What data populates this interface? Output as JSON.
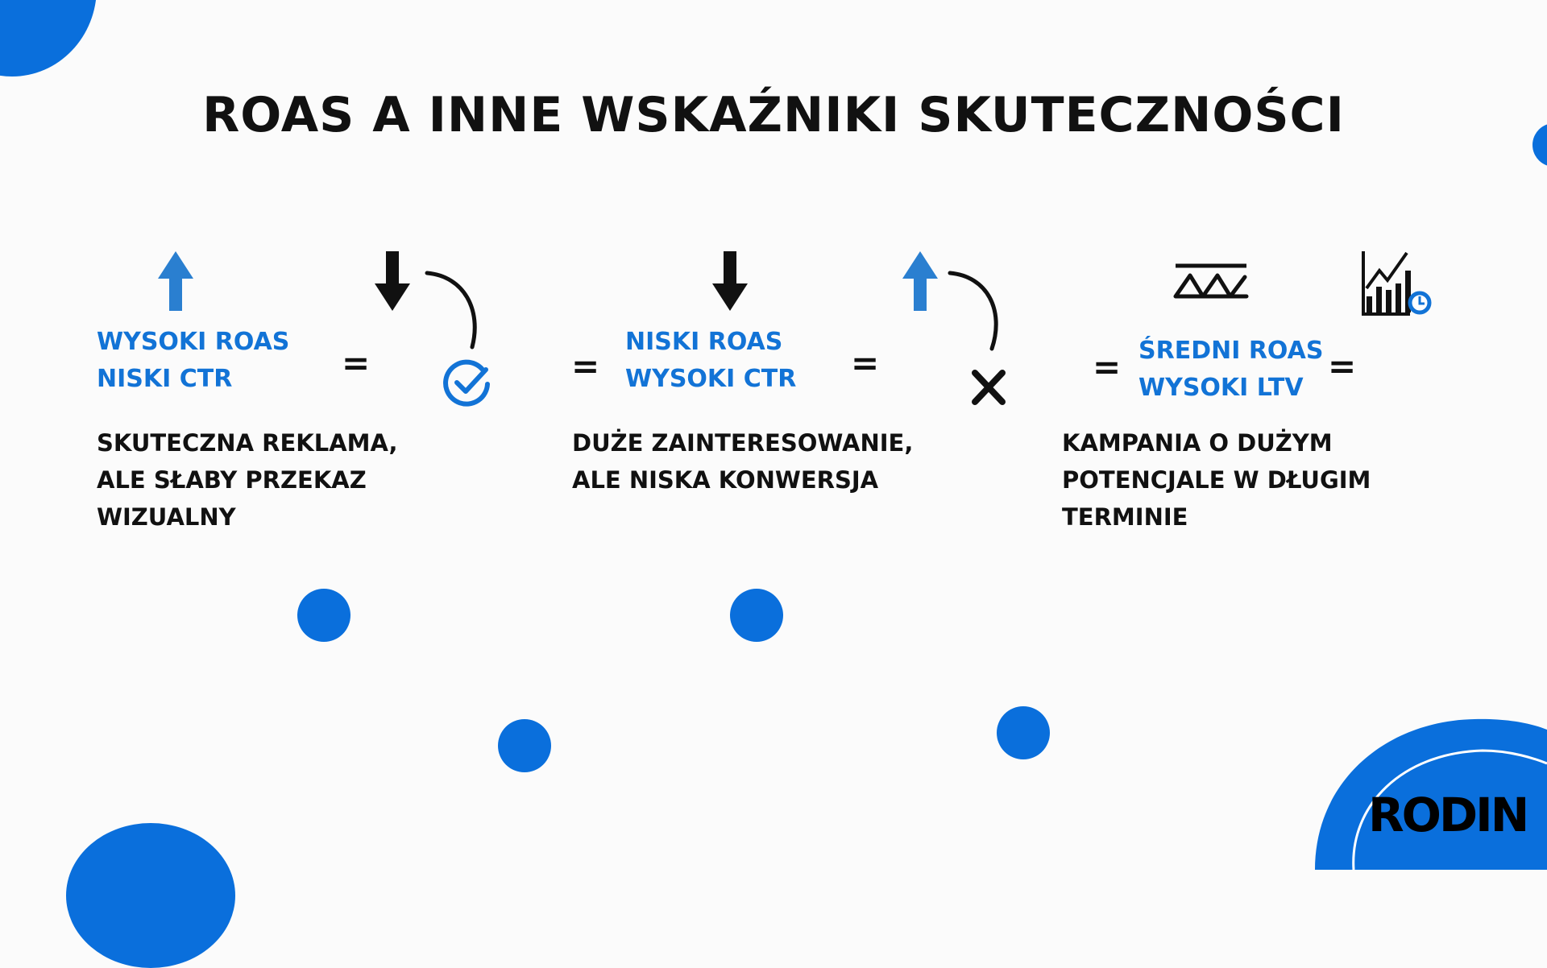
{
  "title": "ROAS A INNE WSKAŹNIKI SKUTECZNOŚCI",
  "colors": {
    "accent": "#0a6fdc",
    "metric_text": "#1273d6",
    "arrow_blue": "#2a7fd0"
  },
  "columns": [
    {
      "metric_lines": [
        "WYSOKI ROAS",
        "NISKI CTR"
      ],
      "icons": [
        "arrow-up-icon",
        "arrow-down-icon",
        "check-circle-icon"
      ],
      "description_lines": [
        "SKUTECZNA REKLAMA,",
        "ALE SŁABY PRZEKAZ",
        "WIZUALNY"
      ]
    },
    {
      "metric_lines": [
        "NISKI ROAS",
        "WYSOKI CTR"
      ],
      "icons": [
        "arrow-down-icon",
        "arrow-up-icon",
        "x-icon"
      ],
      "description_lines": [
        "DUŻE ZAINTERESOWANIE,",
        "ALE NISKA KONWERSJA"
      ]
    },
    {
      "metric_lines": [
        "ŚREDNI ROAS",
        "WYSOKI LTV"
      ],
      "icons": [
        "average-icon",
        "growth-chart-clock-icon"
      ],
      "description_lines": [
        "KAMPANIA O DUŻYM",
        "POTENCJALE W DŁUGIM",
        "TERMINIE"
      ]
    }
  ],
  "equals": "=",
  "logo": "RODIN"
}
